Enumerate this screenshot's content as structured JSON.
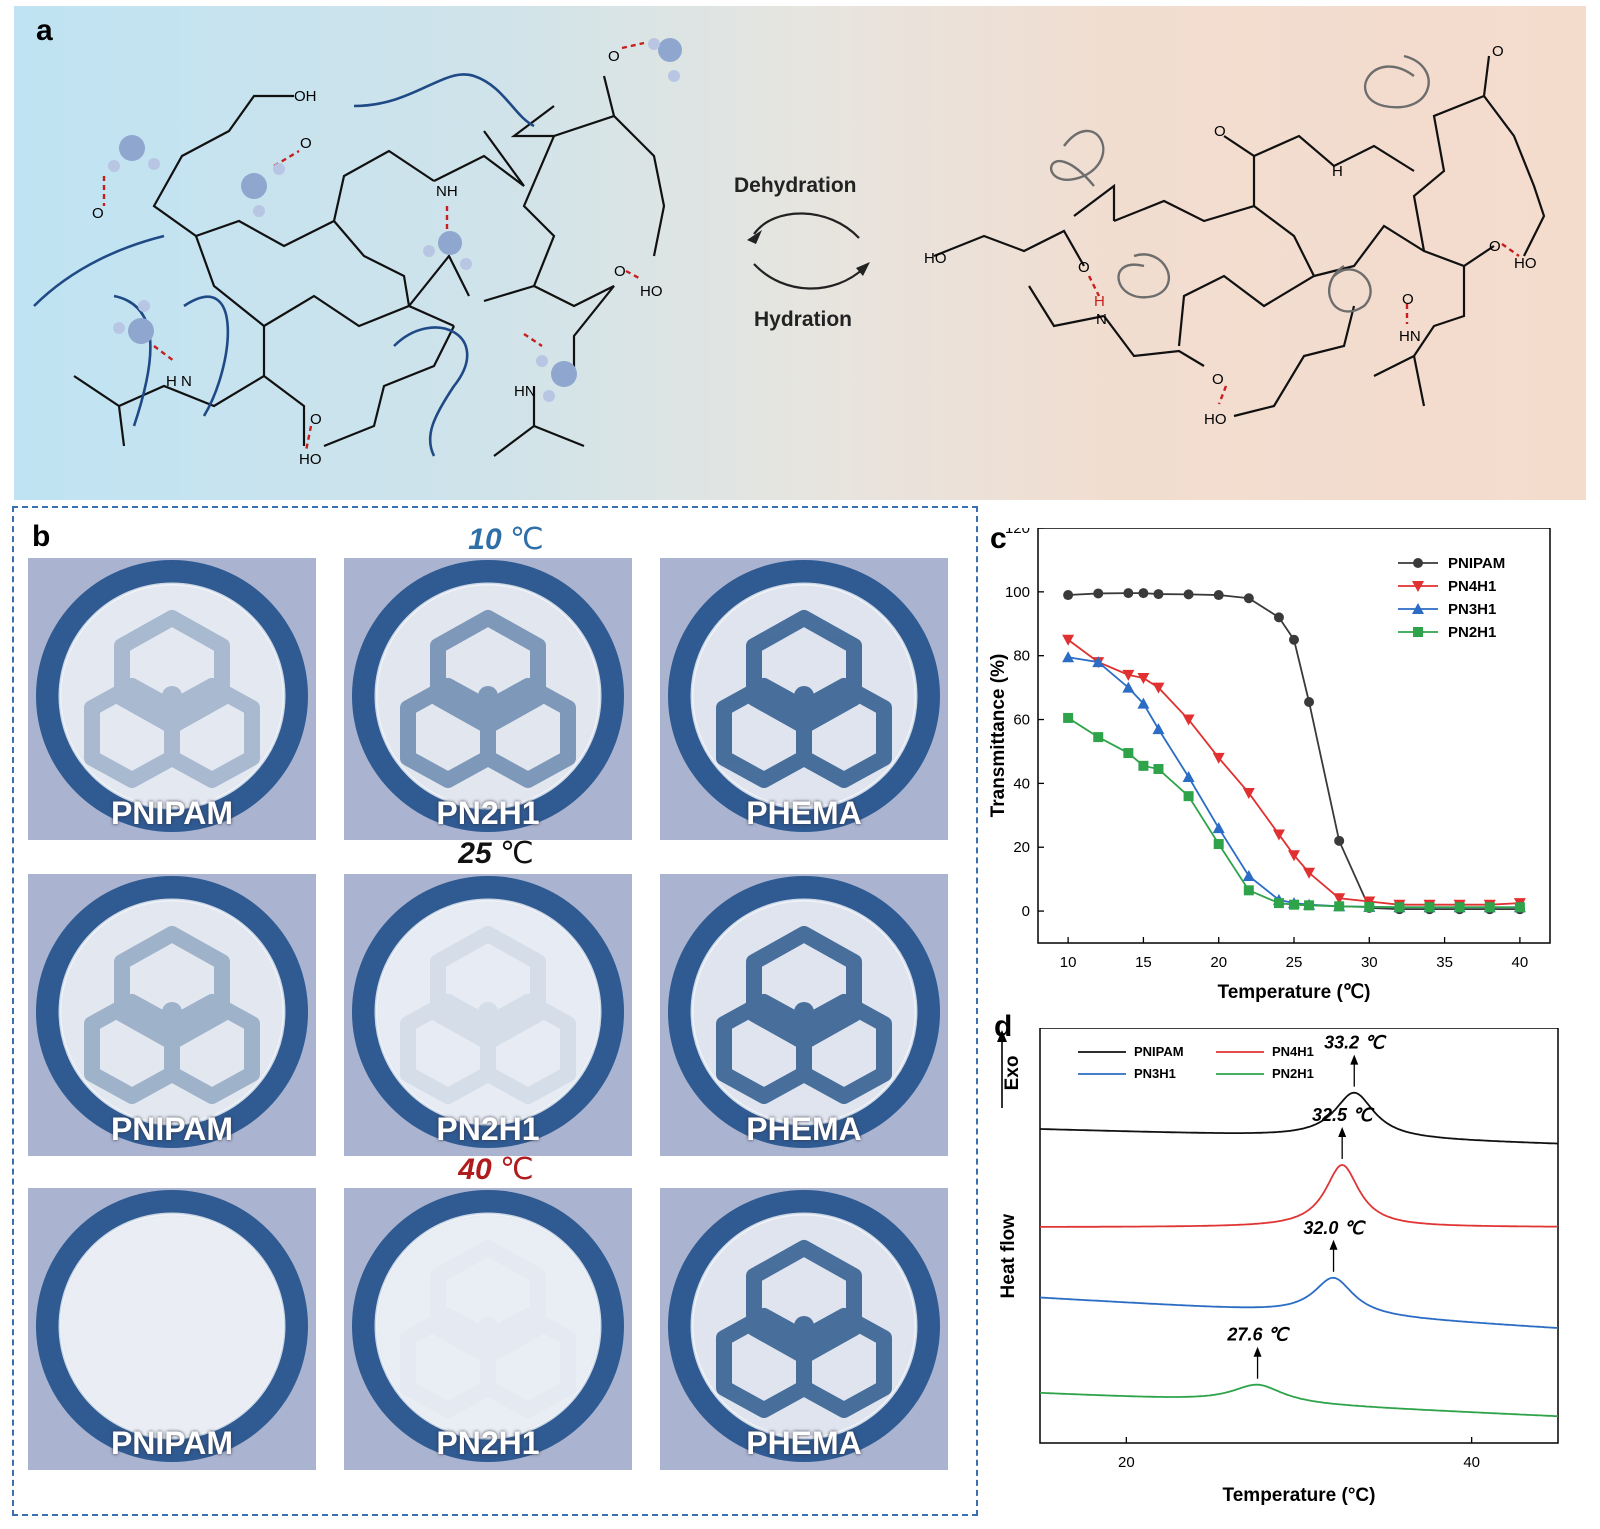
{
  "panels": {
    "a": "a",
    "b": "b",
    "c": "c",
    "d": "d"
  },
  "panel_a": {
    "arrow_top": "Dehydration",
    "arrow_bottom": "Hydration",
    "chem_labels_left": [
      "OH",
      "O",
      "O",
      "NH",
      "O",
      "HO",
      "O",
      "H N",
      "O",
      "HO",
      "HN"
    ],
    "chem_labels_right": [
      "O",
      "O",
      "H",
      "HO",
      "O",
      "H",
      "N",
      "O",
      "HO",
      "O",
      "HO",
      "O",
      "HN"
    ]
  },
  "panel_b": {
    "temps": [
      {
        "value": "10",
        "unit": "℃",
        "color": "#2f6fa8"
      },
      {
        "value": "25",
        "unit": "℃",
        "color": "#111111"
      },
      {
        "value": "40",
        "unit": "℃",
        "color": "#b01c1c"
      }
    ],
    "samples": [
      "PNIPAM",
      "PN2H1",
      "PHEMA"
    ],
    "visibility": [
      [
        0.55,
        0.75,
        0.95
      ],
      [
        0.6,
        0.25,
        0.95
      ],
      [
        0.0,
        0.08,
        0.95
      ]
    ]
  },
  "chart_data": [
    {
      "type": "line",
      "panel": "c",
      "xlabel": "Temperature (℃)",
      "ylabel": "Transmittance (%)",
      "xlim": [
        8,
        42
      ],
      "ylim": [
        -10,
        120
      ],
      "xticks": [
        10,
        15,
        20,
        25,
        30,
        35,
        40
      ],
      "yticks": [
        0,
        20,
        40,
        60,
        80,
        100,
        120
      ],
      "legend": "top-right",
      "series": [
        {
          "name": "PNIPAM",
          "color": "#3a3a3a",
          "marker": "circle",
          "x": [
            10,
            12,
            14,
            15,
            16,
            18,
            20,
            22,
            24,
            25,
            26,
            28,
            30,
            32,
            34,
            36,
            38,
            40
          ],
          "y": [
            99,
            99.5,
            99.6,
            99.6,
            99.3,
            99.2,
            99,
            98,
            92,
            85,
            65.5,
            22,
            1,
            0.6,
            0.6,
            0.6,
            0.6,
            0.6
          ]
        },
        {
          "name": "PN4H1",
          "color": "#e03030",
          "marker": "triangle-down",
          "x": [
            10,
            12,
            14,
            15,
            16,
            18,
            20,
            22,
            24,
            25,
            26,
            28,
            30,
            32,
            34,
            36,
            38,
            40
          ],
          "y": [
            85,
            78,
            74,
            73,
            70,
            60,
            48,
            37,
            24,
            17.5,
            12,
            4,
            3,
            2,
            2,
            2,
            2,
            2.5
          ]
        },
        {
          "name": "PN3H1",
          "color": "#2b6cc4",
          "marker": "triangle-up",
          "x": [
            10,
            12,
            14,
            15,
            16,
            18,
            20,
            22,
            24,
            25,
            26,
            28,
            30,
            32,
            34,
            36,
            38,
            40
          ],
          "y": [
            79.5,
            78,
            70,
            65,
            57,
            42,
            26,
            11,
            3.5,
            2.5,
            2,
            1.5,
            1.3,
            1.2,
            1.2,
            1.2,
            1.2,
            1.2
          ]
        },
        {
          "name": "PN2H1",
          "color": "#2fa34a",
          "marker": "square",
          "x": [
            10,
            12,
            14,
            15,
            16,
            18,
            20,
            22,
            24,
            25,
            26,
            28,
            30,
            32,
            34,
            36,
            38,
            40
          ],
          "y": [
            60.5,
            54.5,
            49.5,
            45.5,
            44.5,
            36,
            21,
            6.5,
            2.5,
            2,
            1.8,
            1.5,
            1.3,
            1.2,
            1.2,
            1.2,
            1.2,
            1.2
          ]
        }
      ]
    },
    {
      "type": "line",
      "panel": "d",
      "xlabel": "Temperature (°C)",
      "ylabel": "Heat flow",
      "ylabel_top": "Exo",
      "xlim": [
        15,
        45
      ],
      "xticks": [
        20,
        40
      ],
      "legend": "top-left",
      "series": [
        {
          "name": "PNIPAM",
          "color": "#111111",
          "offset": 3.0,
          "peak_x": 33.2,
          "peak_label": "33.2 ℃",
          "peak_height": 0.55,
          "width": 1.4,
          "baseline": [
            0.18,
            0.0
          ]
        },
        {
          "name": "PN4H1",
          "color": "#e03535",
          "offset": 2.0,
          "peak_x": 32.5,
          "peak_label": "32.5 ℃",
          "peak_height": 0.75,
          "width": 1.2,
          "baseline": [
            0.0,
            0.0
          ]
        },
        {
          "name": "PN3H1",
          "color": "#2b6cc4",
          "offset": 1.1,
          "peak_x": 32.0,
          "peak_label": "32.0 ℃",
          "peak_height": 0.45,
          "width": 1.4,
          "baseline": [
            0.05,
            -0.32
          ]
        },
        {
          "name": "PN2H1",
          "color": "#2fa34a",
          "offset": 0.0,
          "peak_x": 27.6,
          "peak_label": "27.6 ℃",
          "peak_height": 0.22,
          "width": 1.8,
          "baseline": [
            0.0,
            -0.28
          ]
        }
      ]
    }
  ]
}
